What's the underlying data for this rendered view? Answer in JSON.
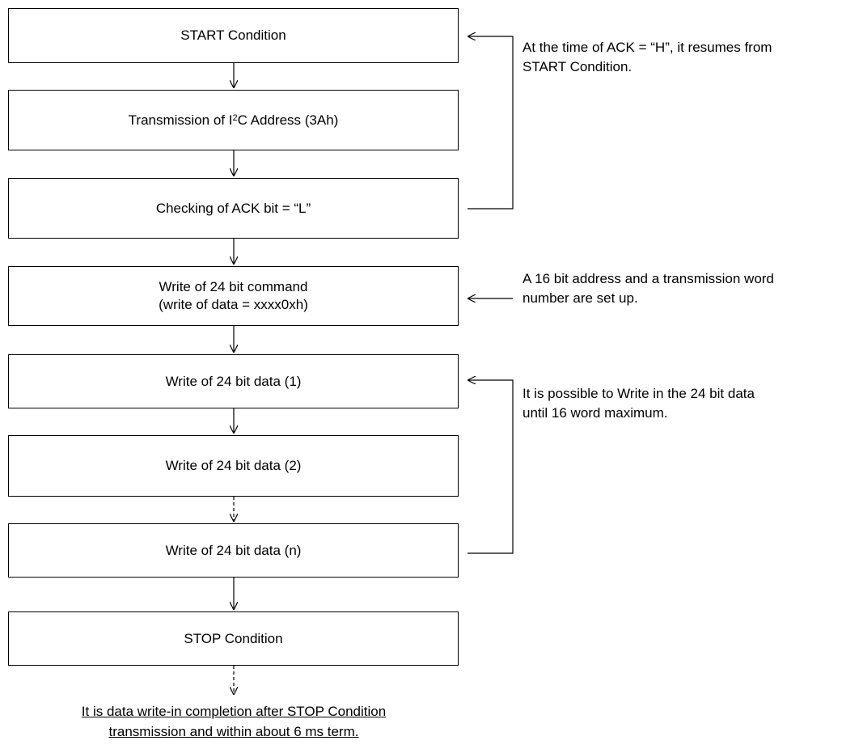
{
  "steps": {
    "start": "START Condition",
    "address_pre": "Transmission of I",
    "address_sup": "2",
    "address_post": "C Address (3Ah)",
    "ack_check": "Checking of ACK bit = “L”",
    "command_line1": "Write of 24 bit command",
    "command_line2": "(write of data = xxxx0xh)",
    "data_1": "Write of 24 bit data (1)",
    "data_2": "Write of 24 bit data (2)",
    "data_n": "Write of 24 bit data (n)",
    "stop": "STOP Condition"
  },
  "notes": {
    "ack_retry_line1": "At the time of ACK = “H”, it resumes from",
    "ack_retry_line2": "START Condition.",
    "command_line1": "A 16 bit address and a transmission word",
    "command_line2": "number are set up.",
    "data_line1": "It is possible to Write in the 24 bit data",
    "data_line2": "until 16 word maximum."
  },
  "footer": {
    "line1": "It is data write-in completion after STOP Condition",
    "line2": "transmission and within about 6 ms term."
  }
}
